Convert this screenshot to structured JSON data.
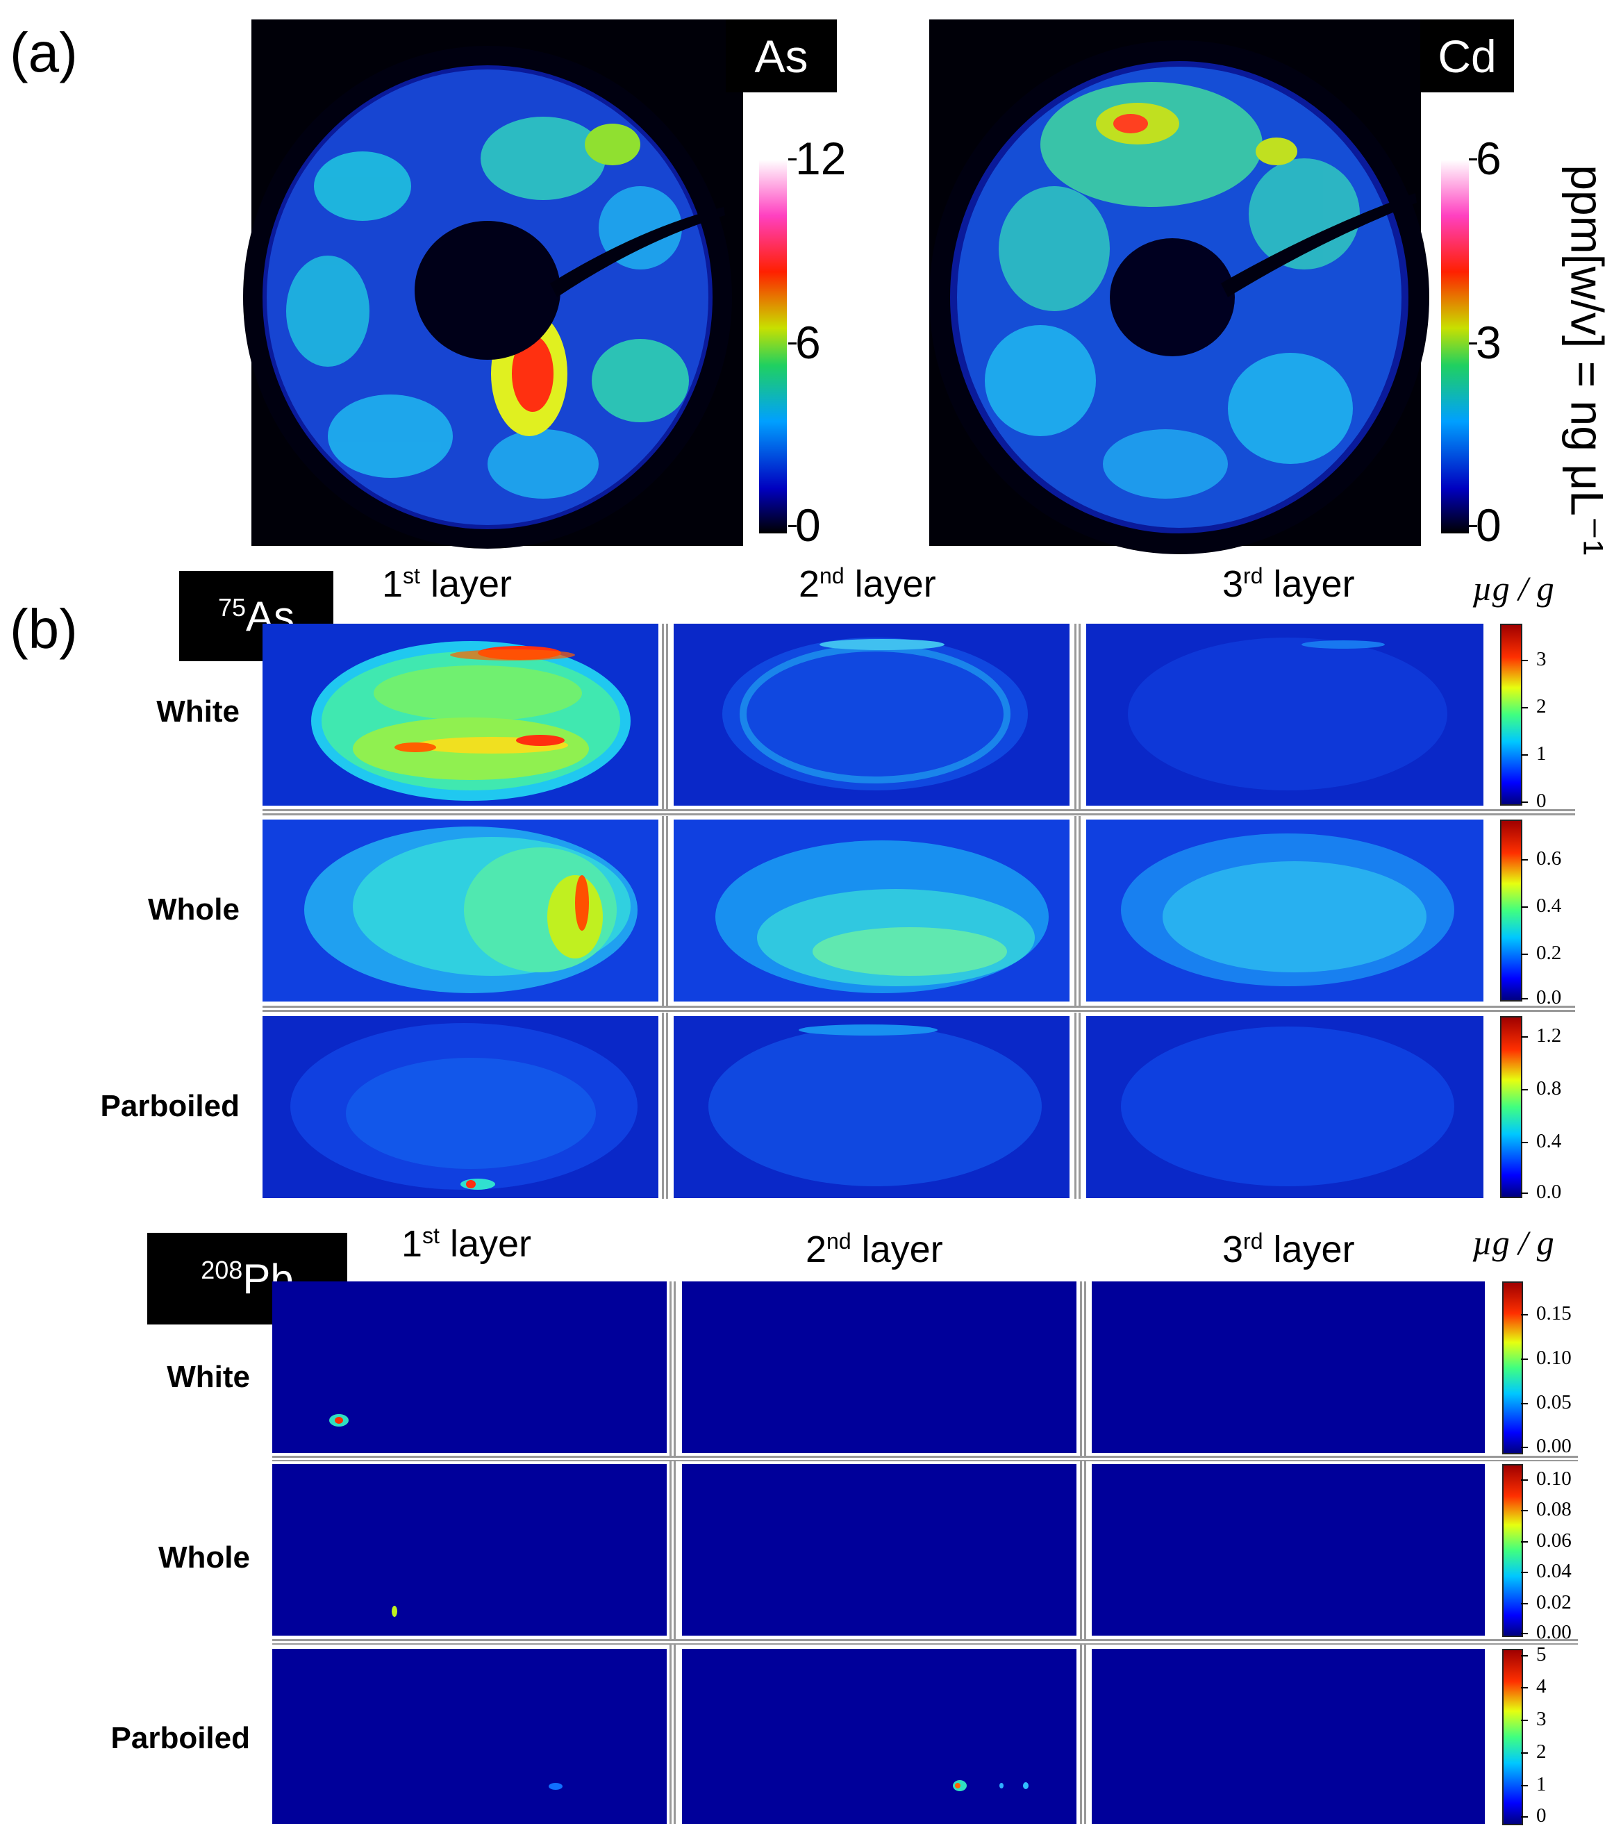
{
  "panel_a": {
    "label": "(a)",
    "maps": [
      {
        "element": "As",
        "colorbar_ticks": [
          "12",
          "6",
          "0"
        ]
      },
      {
        "element": "Cd",
        "colorbar_ticks": [
          "6",
          "3",
          "0"
        ]
      }
    ],
    "colorbar_title": "ppm[w/v] = ng μL⁻¹"
  },
  "panel_b": {
    "label": "(b)",
    "blocks": [
      {
        "isotope_mass": "75",
        "isotope_symbol": "As",
        "layers": [
          [
            "1",
            "st",
            " layer"
          ],
          [
            "2",
            "nd",
            " layer"
          ],
          [
            "3",
            "rd",
            " layer"
          ]
        ],
        "unit": "µg / g",
        "rows": [
          {
            "label": "White",
            "colorbar_ticks": [
              "3",
              "2",
              "1",
              "0"
            ]
          },
          {
            "label": "Whole",
            "colorbar_ticks": [
              "0.6",
              "0.4",
              "0.2",
              "0.0"
            ]
          },
          {
            "label": "Parboiled",
            "colorbar_ticks": [
              "1.2",
              "0.8",
              "0.4",
              "0.0"
            ]
          }
        ]
      },
      {
        "isotope_mass": "208",
        "isotope_symbol": "Pb",
        "layers": [
          [
            "1",
            "st",
            " layer"
          ],
          [
            "2",
            "nd",
            " layer"
          ],
          [
            "3",
            "rd",
            " layer"
          ]
        ],
        "unit": "µg / g",
        "rows": [
          {
            "label": "White",
            "colorbar_ticks": [
              "0.15",
              "0.10",
              "0.05",
              "0.00"
            ]
          },
          {
            "label": "Whole",
            "colorbar_ticks": [
              "0.10",
              "0.08",
              "0.06",
              "0.04",
              "0.02",
              "0.00"
            ]
          },
          {
            "label": "Parboiled",
            "colorbar_ticks": [
              "5",
              "4",
              "3",
              "2",
              "1",
              "0"
            ]
          }
        ]
      }
    ]
  },
  "chart_data": [
    {
      "type": "heatmap",
      "panel": "(a)",
      "maps": [
        "As",
        "Cd"
      ],
      "colorbars": [
        {
          "map": "As",
          "range": [
            0,
            12
          ],
          "ticks": [
            0,
            6,
            12
          ]
        },
        {
          "map": "Cd",
          "range": [
            0,
            6
          ],
          "ticks": [
            0,
            3,
            6
          ]
        }
      ],
      "colorbar_label": "ppm[w/v] = ng μL⁻¹",
      "colormap": "jet"
    },
    {
      "type": "heatmap",
      "panel": "(b)",
      "isotope": "75As",
      "columns": [
        "1st layer",
        "2nd layer",
        "3rd layer"
      ],
      "rows": [
        "White",
        "Whole",
        "Parboiled"
      ],
      "unit": "µg/g",
      "colorbars": [
        {
          "row": "White",
          "range": [
            0,
            3.7
          ],
          "ticks": [
            0,
            1,
            2,
            3
          ]
        },
        {
          "row": "Whole",
          "range": [
            0,
            0.75
          ],
          "ticks": [
            0.0,
            0.2,
            0.4,
            0.6
          ]
        },
        {
          "row": "Parboiled",
          "range": [
            0,
            1.3
          ],
          "ticks": [
            0.0,
            0.4,
            0.8,
            1.2
          ]
        }
      ],
      "colormap": "jet"
    },
    {
      "type": "heatmap",
      "panel": "(b)",
      "isotope": "208Pb",
      "columns": [
        "1st layer",
        "2nd layer",
        "3rd layer"
      ],
      "rows": [
        "White",
        "Whole",
        "Parboiled"
      ],
      "unit": "µg/g",
      "colorbars": [
        {
          "row": "White",
          "range": [
            0,
            0.19
          ],
          "ticks": [
            0.0,
            0.05,
            0.1,
            0.15
          ]
        },
        {
          "row": "Whole",
          "range": [
            0,
            0.11
          ],
          "ticks": [
            0.0,
            0.02,
            0.04,
            0.06,
            0.08,
            0.1
          ]
        },
        {
          "row": "Parboiled",
          "range": [
            0,
            5.2
          ],
          "ticks": [
            0,
            1,
            2,
            3,
            4,
            5
          ]
        }
      ],
      "colormap": "jet"
    }
  ]
}
